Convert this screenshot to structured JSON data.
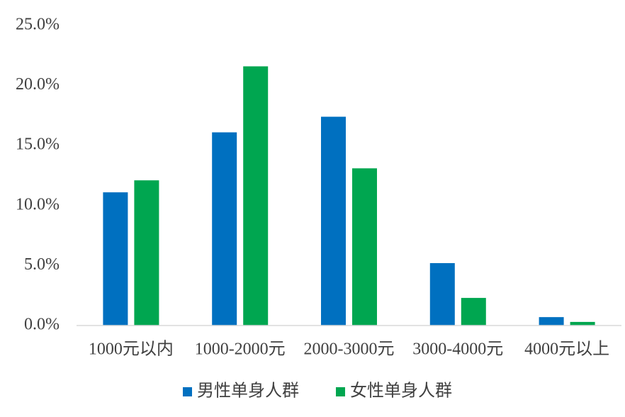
{
  "chart_data": {
    "type": "bar",
    "categories": [
      "1000元以内",
      "1000-2000元",
      "2000-3000元",
      "3000-4000元",
      "4000元以上"
    ],
    "series": [
      {
        "name": "男性单身人群",
        "color": "#0070c0",
        "values": [
          11.1,
          16.1,
          17.4,
          5.2,
          0.7
        ]
      },
      {
        "name": "女性单身人群",
        "color": "#00a650",
        "values": [
          12.1,
          21.6,
          13.1,
          2.3,
          0.3
        ]
      }
    ],
    "ylim": [
      0,
      25
    ],
    "yticks": [
      {
        "value": 0,
        "label": "0.0%"
      },
      {
        "value": 5,
        "label": "5.0%"
      },
      {
        "value": 10,
        "label": "10.0%"
      },
      {
        "value": 15,
        "label": "15.0%"
      },
      {
        "value": 20,
        "label": "20.0%"
      },
      {
        "value": 25,
        "label": "25.0%"
      }
    ],
    "grid": false,
    "legend": "bottom"
  }
}
